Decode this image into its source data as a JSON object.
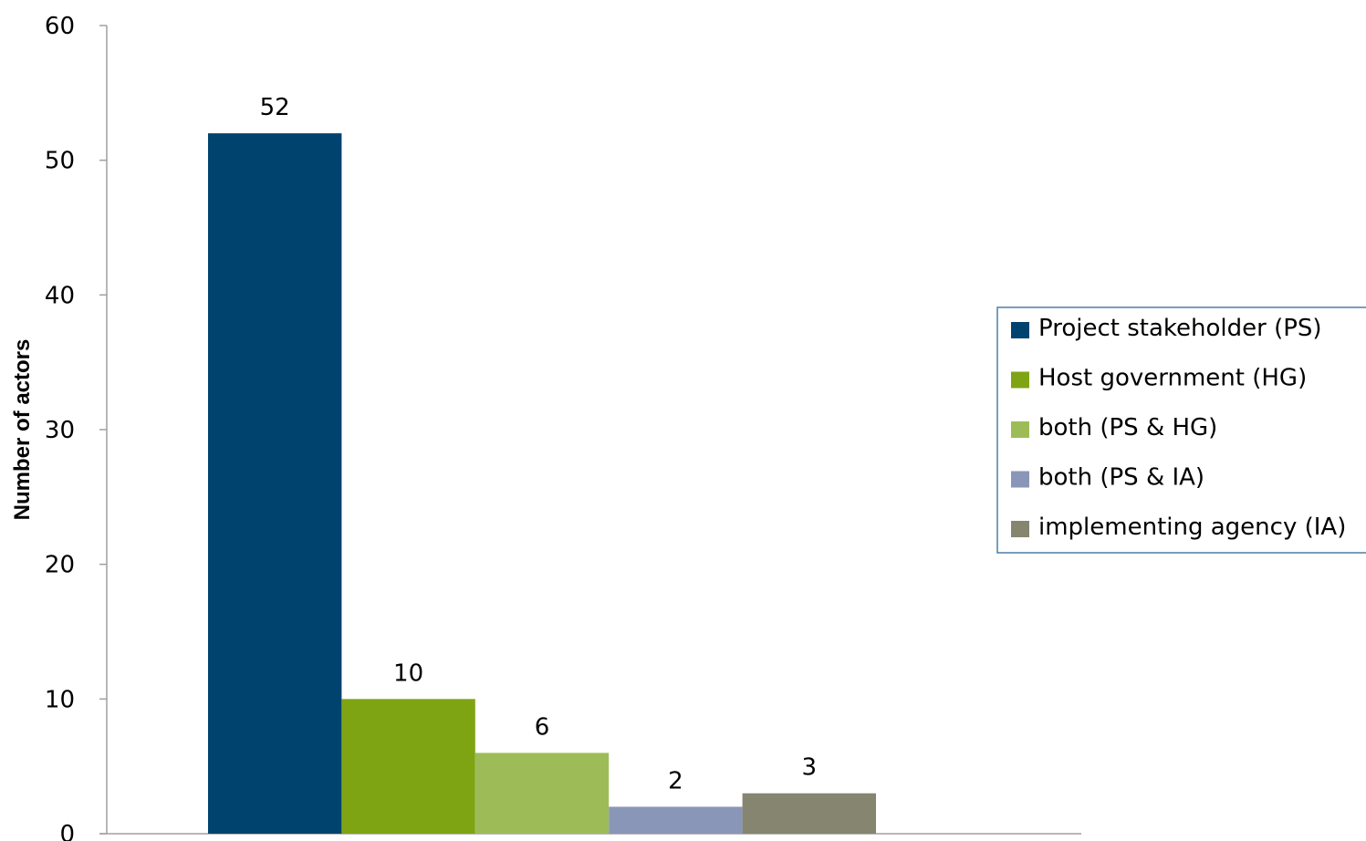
{
  "chart_data": {
    "type": "bar",
    "title": "",
    "xlabel": "",
    "ylabel": "Number of actors",
    "ylim": [
      0,
      60
    ],
    "yticks": [
      0,
      10,
      20,
      30,
      40,
      50,
      60
    ],
    "grid": false,
    "legend_position": "right",
    "series": [
      {
        "name": "Project stakeholder (PS)",
        "value": 52,
        "color": "#01436F"
      },
      {
        "name": "Host government (HG)",
        "value": 10,
        "color": "#7FA413"
      },
      {
        "name": "both (PS & HG)",
        "value": 6,
        "color": "#9DBC58"
      },
      {
        "name": "both (PS & IA)",
        "value": 2,
        "color": "#8A96B8"
      },
      {
        "name": "implementing agency (IA)",
        "value": 3,
        "color": "#868570"
      }
    ]
  }
}
